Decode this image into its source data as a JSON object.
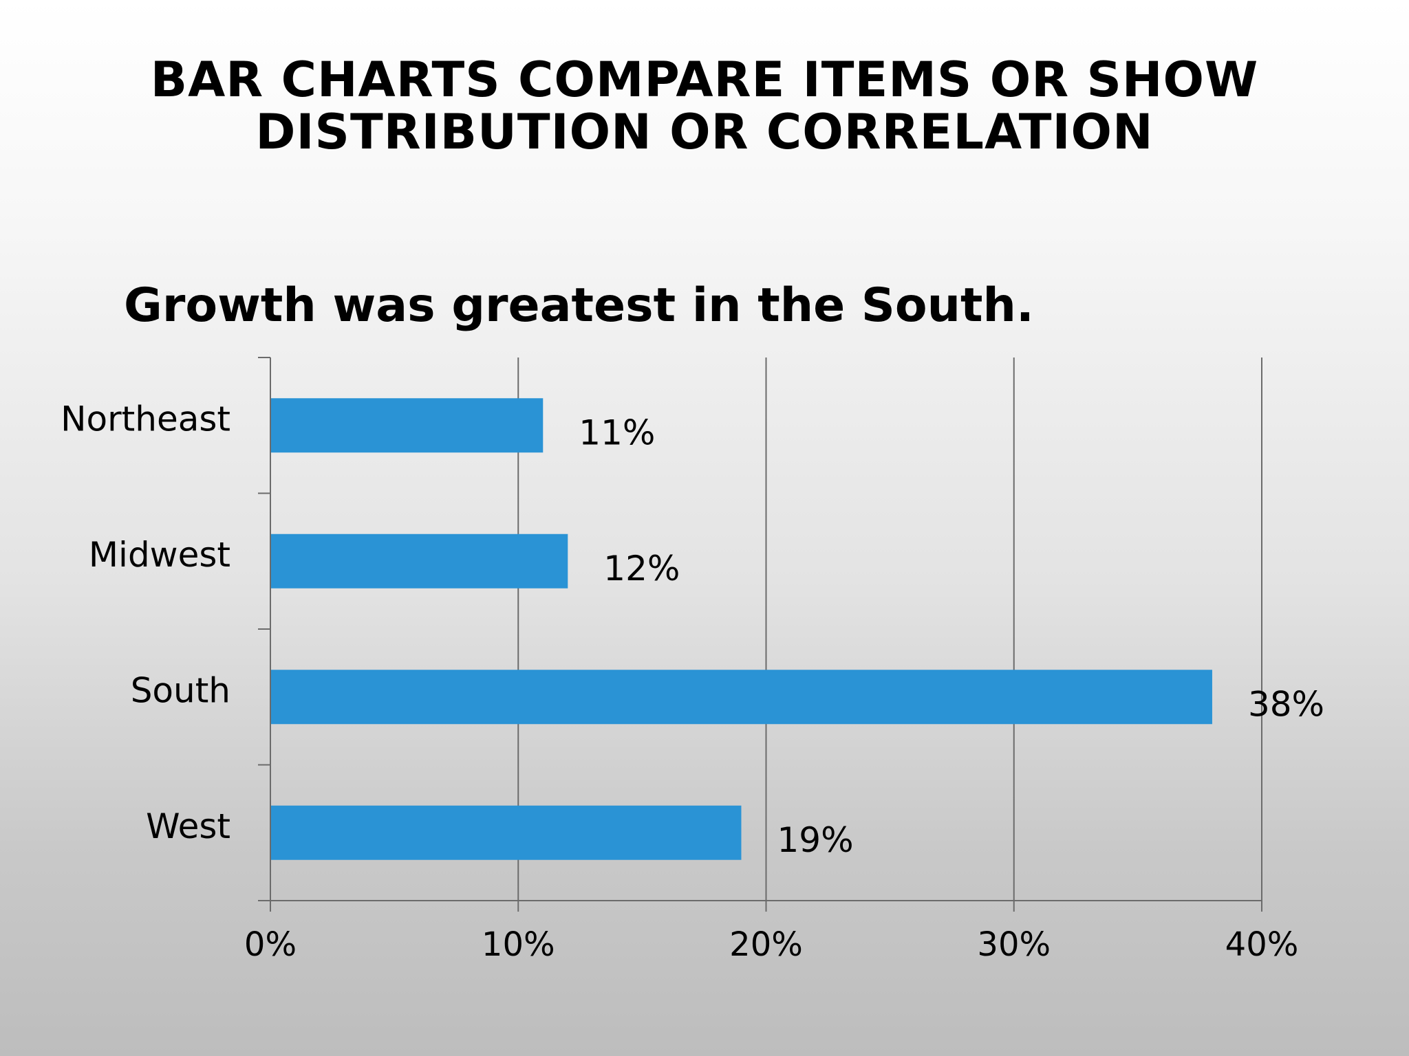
{
  "slide": {
    "title_line1": "BAR CHARTS COMPARE ITEMS OR SHOW",
    "title_line2": "DISTRIBUTION OR CORRELATION"
  },
  "chart_data": {
    "type": "bar",
    "orientation": "horizontal",
    "title": "Growth was greatest in the South.",
    "categories": [
      "Northeast",
      "Midwest",
      "South",
      "West"
    ],
    "values": [
      11,
      12,
      38,
      19
    ],
    "data_labels": [
      "11%",
      "12%",
      "38%",
      "19%"
    ],
    "xlim": [
      0,
      40
    ],
    "xticks": [
      0,
      10,
      20,
      30,
      40
    ],
    "xtick_labels": [
      "0%",
      "10%",
      "20%",
      "30%",
      "40%"
    ],
    "grid": "vertical",
    "legend": "none",
    "bar_color": "#2A93D5",
    "gridline_color": "#6b6b6b"
  }
}
